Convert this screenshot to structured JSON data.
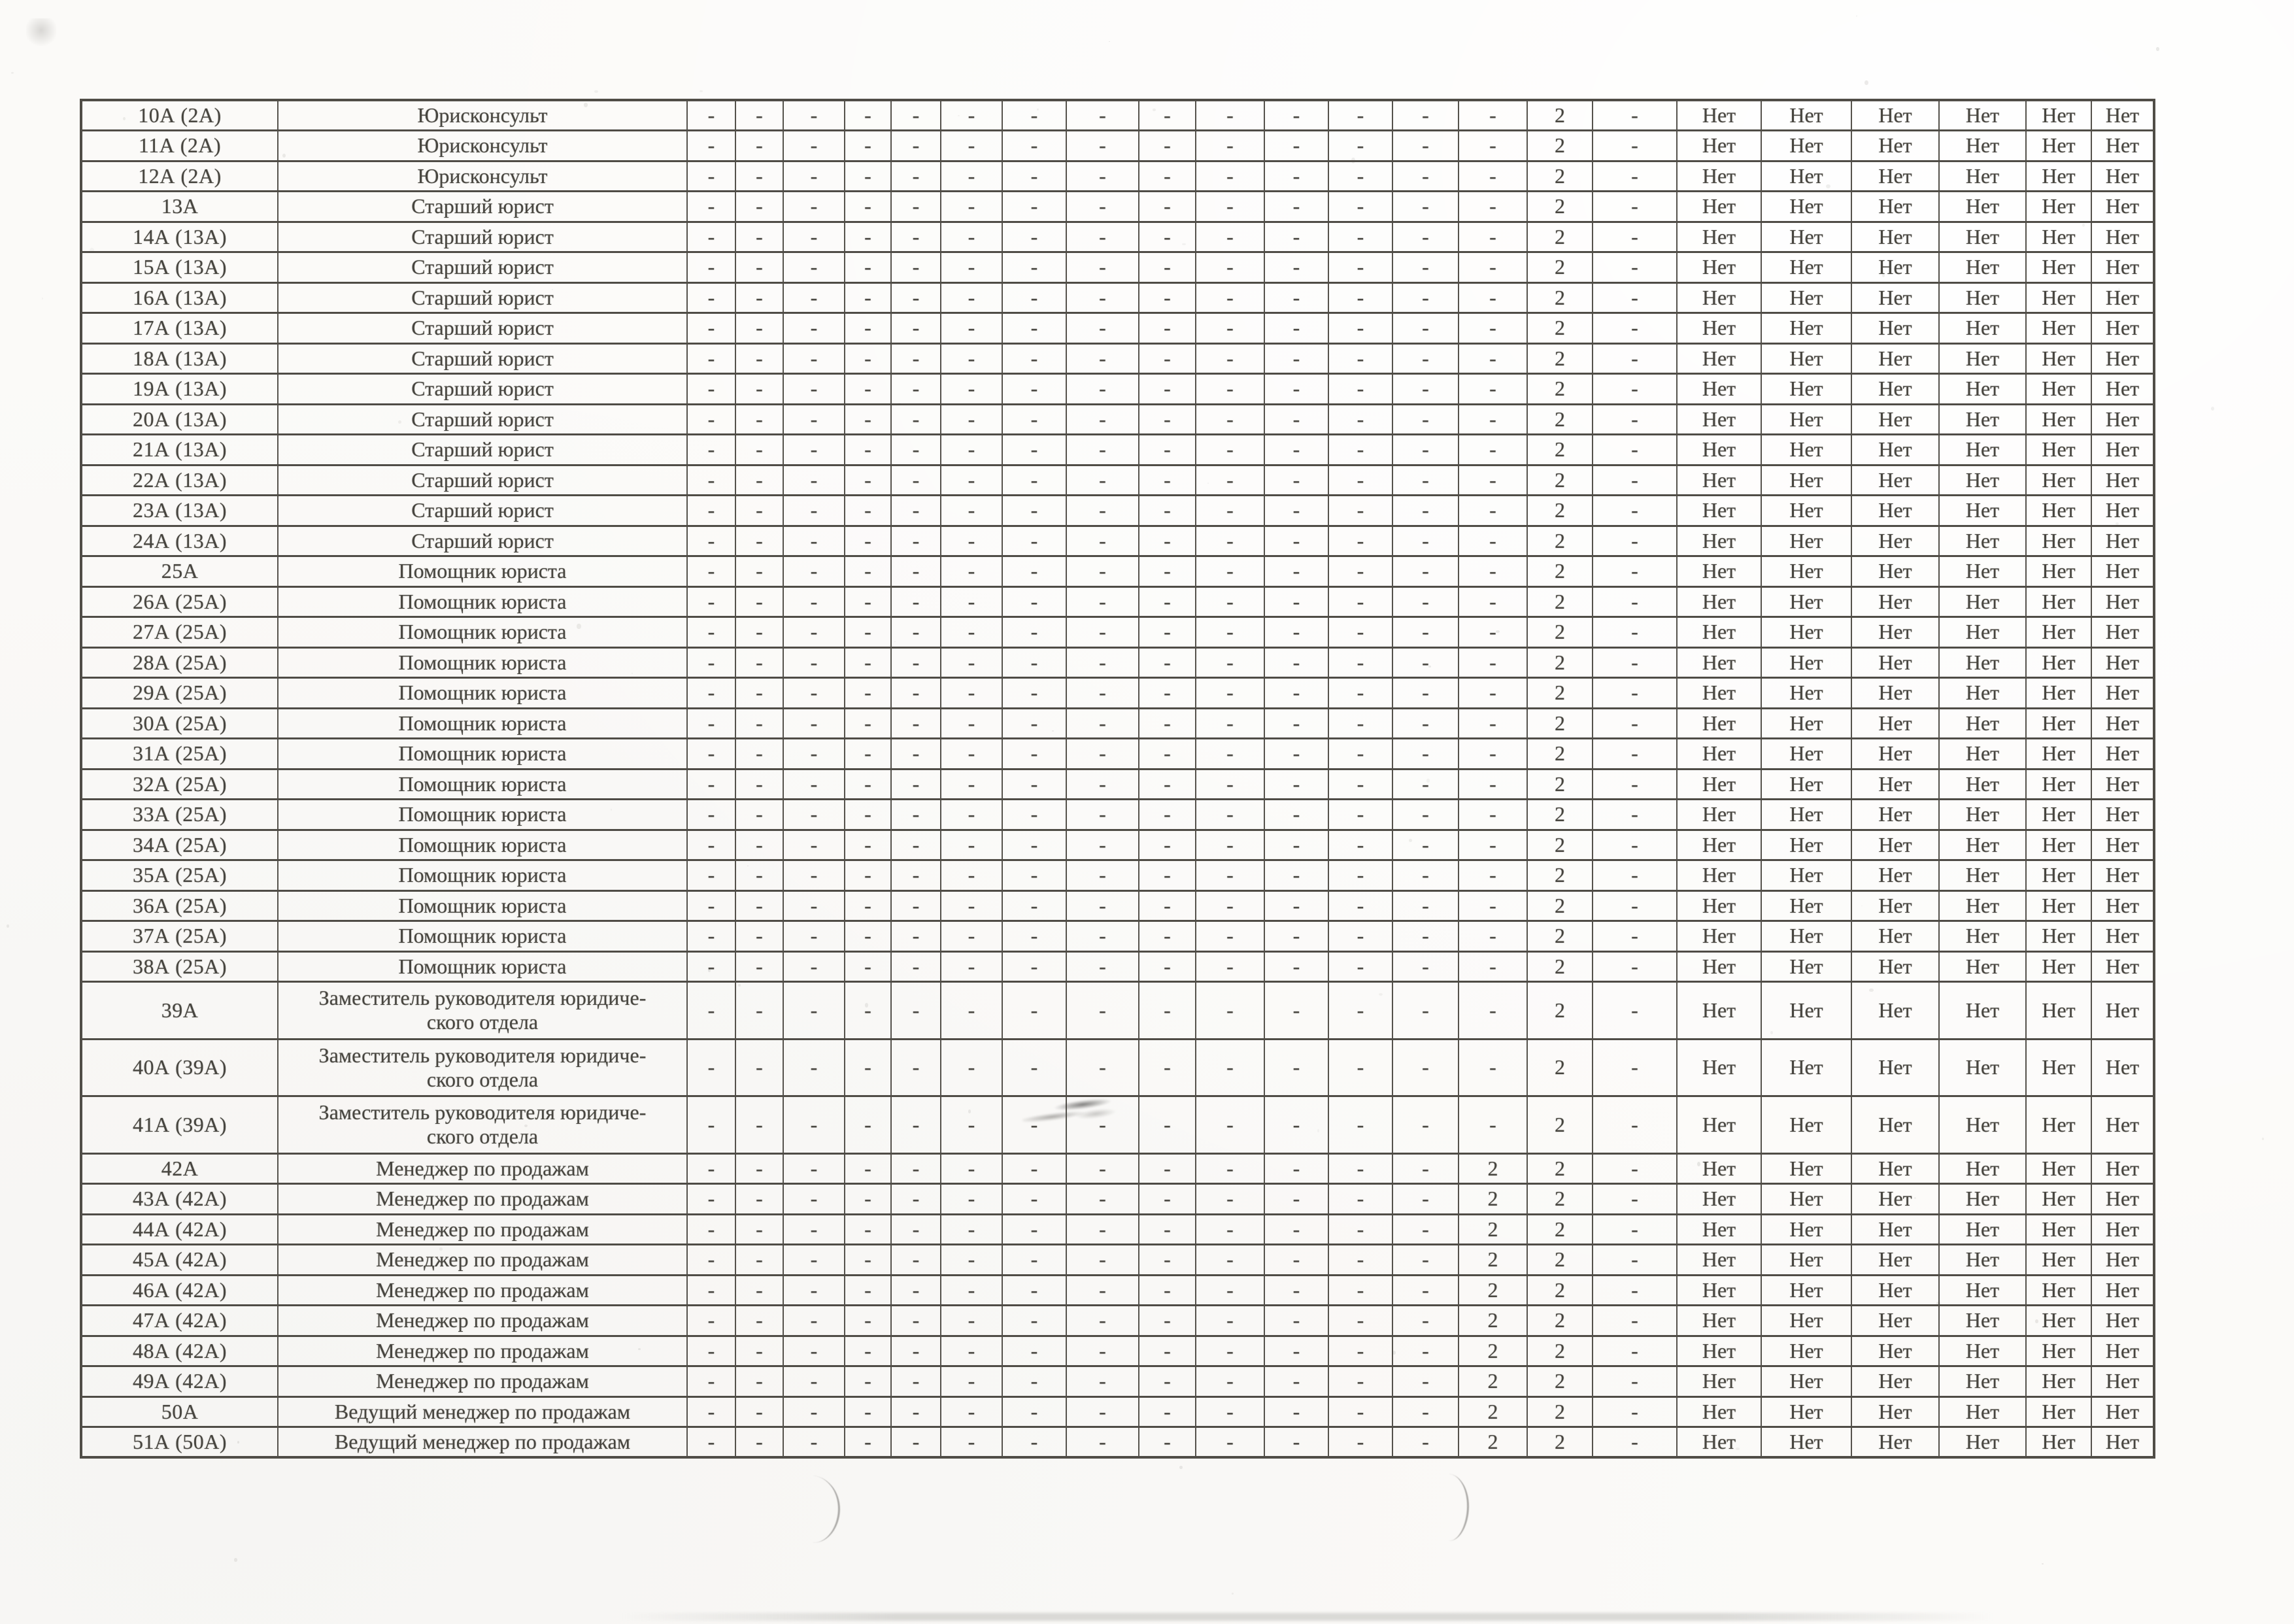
{
  "colors": {
    "paper": "#fbfaf8",
    "ink": "#47453f",
    "grid_line": "#504d47"
  },
  "table": {
    "rows": [
      {
        "code": "10А (2А)",
        "title": "Юрисконсульт",
        "values": [
          "-",
          "-",
          "-",
          "-",
          "-",
          "-",
          "-",
          "-",
          "-",
          "-",
          "-",
          "-",
          "-",
          "-",
          "2",
          "-",
          "Нет",
          "Нет",
          "Нет",
          "Нет",
          "Нет",
          "Нет"
        ]
      },
      {
        "code": "11А (2А)",
        "title": "Юрисконсульт",
        "values": [
          "-",
          "-",
          "-",
          "-",
          "-",
          "-",
          "-",
          "-",
          "-",
          "-",
          "-",
          "-",
          "-",
          "-",
          "2",
          "-",
          "Нет",
          "Нет",
          "Нет",
          "Нет",
          "Нет",
          "Нет"
        ]
      },
      {
        "code": "12А (2А)",
        "title": "Юрисконсульт",
        "values": [
          "-",
          "-",
          "-",
          "-",
          "-",
          "-",
          "-",
          "-",
          "-",
          "-",
          "-",
          "-",
          "-",
          "-",
          "2",
          "-",
          "Нет",
          "Нет",
          "Нет",
          "Нет",
          "Нет",
          "Нет"
        ]
      },
      {
        "code": "13А",
        "title": "Старший юрист",
        "values": [
          "-",
          "-",
          "-",
          "-",
          "-",
          "-",
          "-",
          "-",
          "-",
          "-",
          "-",
          "-",
          "-",
          "-",
          "2",
          "-",
          "Нет",
          "Нет",
          "Нет",
          "Нет",
          "Нет",
          "Нет"
        ]
      },
      {
        "code": "14А (13А)",
        "title": "Старший юрист",
        "values": [
          "-",
          "-",
          "-",
          "-",
          "-",
          "-",
          "-",
          "-",
          "-",
          "-",
          "-",
          "-",
          "-",
          "-",
          "2",
          "-",
          "Нет",
          "Нет",
          "Нет",
          "Нет",
          "Нет",
          "Нет"
        ]
      },
      {
        "code": "15А (13А)",
        "title": "Старший юрист",
        "values": [
          "-",
          "-",
          "-",
          "-",
          "-",
          "-",
          "-",
          "-",
          "-",
          "-",
          "-",
          "-",
          "-",
          "-",
          "2",
          "-",
          "Нет",
          "Нет",
          "Нет",
          "Нет",
          "Нет",
          "Нет"
        ]
      },
      {
        "code": "16А (13А)",
        "title": "Старший юрист",
        "values": [
          "-",
          "-",
          "-",
          "-",
          "-",
          "-",
          "-",
          "-",
          "-",
          "-",
          "-",
          "-",
          "-",
          "-",
          "2",
          "-",
          "Нет",
          "Нет",
          "Нет",
          "Нет",
          "Нет",
          "Нет"
        ]
      },
      {
        "code": "17А (13А)",
        "title": "Старший юрист",
        "values": [
          "-",
          "-",
          "-",
          "-",
          "-",
          "-",
          "-",
          "-",
          "-",
          "-",
          "-",
          "-",
          "-",
          "-",
          "2",
          "-",
          "Нет",
          "Нет",
          "Нет",
          "Нет",
          "Нет",
          "Нет"
        ]
      },
      {
        "code": "18А (13А)",
        "title": "Старший юрист",
        "values": [
          "-",
          "-",
          "-",
          "-",
          "-",
          "-",
          "-",
          "-",
          "-",
          "-",
          "-",
          "-",
          "-",
          "-",
          "2",
          "-",
          "Нет",
          "Нет",
          "Нет",
          "Нет",
          "Нет",
          "Нет"
        ]
      },
      {
        "code": "19А (13А)",
        "title": "Старший юрист",
        "values": [
          "-",
          "-",
          "-",
          "-",
          "-",
          "-",
          "-",
          "-",
          "-",
          "-",
          "-",
          "-",
          "-",
          "-",
          "2",
          "-",
          "Нет",
          "Нет",
          "Нет",
          "Нет",
          "Нет",
          "Нет"
        ]
      },
      {
        "code": "20А (13А)",
        "title": "Старший юрист",
        "values": [
          "-",
          "-",
          "-",
          "-",
          "-",
          "-",
          "-",
          "-",
          "-",
          "-",
          "-",
          "-",
          "-",
          "-",
          "2",
          "-",
          "Нет",
          "Нет",
          "Нет",
          "Нет",
          "Нет",
          "Нет"
        ]
      },
      {
        "code": "21А (13А)",
        "title": "Старший юрист",
        "values": [
          "-",
          "-",
          "-",
          "-",
          "-",
          "-",
          "-",
          "-",
          "-",
          "-",
          "-",
          "-",
          "-",
          "-",
          "2",
          "-",
          "Нет",
          "Нет",
          "Нет",
          "Нет",
          "Нет",
          "Нет"
        ]
      },
      {
        "code": "22А (13А)",
        "title": "Старший юрист",
        "values": [
          "-",
          "-",
          "-",
          "-",
          "-",
          "-",
          "-",
          "-",
          "-",
          "-",
          "-",
          "-",
          "-",
          "-",
          "2",
          "-",
          "Нет",
          "Нет",
          "Нет",
          "Нет",
          "Нет",
          "Нет"
        ]
      },
      {
        "code": "23А (13А)",
        "title": "Старший юрист",
        "values": [
          "-",
          "-",
          "-",
          "-",
          "-",
          "-",
          "-",
          "-",
          "-",
          "-",
          "-",
          "-",
          "-",
          "-",
          "2",
          "-",
          "Нет",
          "Нет",
          "Нет",
          "Нет",
          "Нет",
          "Нет"
        ]
      },
      {
        "code": "24А (13А)",
        "title": "Старший юрист",
        "values": [
          "-",
          "-",
          "-",
          "-",
          "-",
          "-",
          "-",
          "-",
          "-",
          "-",
          "-",
          "-",
          "-",
          "-",
          "2",
          "-",
          "Нет",
          "Нет",
          "Нет",
          "Нет",
          "Нет",
          "Нет"
        ]
      },
      {
        "code": "25А",
        "title": "Помощник юриста",
        "values": [
          "-",
          "-",
          "-",
          "-",
          "-",
          "-",
          "-",
          "-",
          "-",
          "-",
          "-",
          "-",
          "-",
          "-",
          "2",
          "-",
          "Нет",
          "Нет",
          "Нет",
          "Нет",
          "Нет",
          "Нет"
        ]
      },
      {
        "code": "26А (25А)",
        "title": "Помощник юриста",
        "values": [
          "-",
          "-",
          "-",
          "-",
          "-",
          "-",
          "-",
          "-",
          "-",
          "-",
          "-",
          "-",
          "-",
          "-",
          "2",
          "-",
          "Нет",
          "Нет",
          "Нет",
          "Нет",
          "Нет",
          "Нет"
        ]
      },
      {
        "code": "27А (25А)",
        "title": "Помощник юриста",
        "values": [
          "-",
          "-",
          "-",
          "-",
          "-",
          "-",
          "-",
          "-",
          "-",
          "-",
          "-",
          "-",
          "-",
          "-",
          "2",
          "-",
          "Нет",
          "Нет",
          "Нет",
          "Нет",
          "Нет",
          "Нет"
        ]
      },
      {
        "code": "28А (25А)",
        "title": "Помощник юриста",
        "values": [
          "-",
          "-",
          "-",
          "-",
          "-",
          "-",
          "-",
          "-",
          "-",
          "-",
          "-",
          "-",
          "-",
          "-",
          "2",
          "-",
          "Нет",
          "Нет",
          "Нет",
          "Нет",
          "Нет",
          "Нет"
        ]
      },
      {
        "code": "29А (25А)",
        "title": "Помощник юриста",
        "values": [
          "-",
          "-",
          "-",
          "-",
          "-",
          "-",
          "-",
          "-",
          "-",
          "-",
          "-",
          "-",
          "-",
          "-",
          "2",
          "-",
          "Нет",
          "Нет",
          "Нет",
          "Нет",
          "Нет",
          "Нет"
        ]
      },
      {
        "code": "30А (25А)",
        "title": "Помощник юриста",
        "values": [
          "-",
          "-",
          "-",
          "-",
          "-",
          "-",
          "-",
          "-",
          "-",
          "-",
          "-",
          "-",
          "-",
          "-",
          "2",
          "-",
          "Нет",
          "Нет",
          "Нет",
          "Нет",
          "Нет",
          "Нет"
        ]
      },
      {
        "code": "31А (25А)",
        "title": "Помощник юриста",
        "values": [
          "-",
          "-",
          "-",
          "-",
          "-",
          "-",
          "-",
          "-",
          "-",
          "-",
          "-",
          "-",
          "-",
          "-",
          "2",
          "-",
          "Нет",
          "Нет",
          "Нет",
          "Нет",
          "Нет",
          "Нет"
        ]
      },
      {
        "code": "32А (25А)",
        "title": "Помощник юриста",
        "values": [
          "-",
          "-",
          "-",
          "-",
          "-",
          "-",
          "-",
          "-",
          "-",
          "-",
          "-",
          "-",
          "-",
          "-",
          "2",
          "-",
          "Нет",
          "Нет",
          "Нет",
          "Нет",
          "Нет",
          "Нет"
        ]
      },
      {
        "code": "33А (25А)",
        "title": "Помощник юриста",
        "values": [
          "-",
          "-",
          "-",
          "-",
          "-",
          "-",
          "-",
          "-",
          "-",
          "-",
          "-",
          "-",
          "-",
          "-",
          "2",
          "-",
          "Нет",
          "Нет",
          "Нет",
          "Нет",
          "Нет",
          "Нет"
        ]
      },
      {
        "code": "34А (25А)",
        "title": "Помощник юриста",
        "values": [
          "-",
          "-",
          "-",
          "-",
          "-",
          "-",
          "-",
          "-",
          "-",
          "-",
          "-",
          "-",
          "-",
          "-",
          "2",
          "-",
          "Нет",
          "Нет",
          "Нет",
          "Нет",
          "Нет",
          "Нет"
        ]
      },
      {
        "code": "35А (25А)",
        "title": "Помощник юриста",
        "values": [
          "-",
          "-",
          "-",
          "-",
          "-",
          "-",
          "-",
          "-",
          "-",
          "-",
          "-",
          "-",
          "-",
          "-",
          "2",
          "-",
          "Нет",
          "Нет",
          "Нет",
          "Нет",
          "Нет",
          "Нет"
        ]
      },
      {
        "code": "36А (25А)",
        "title": "Помощник юриста",
        "values": [
          "-",
          "-",
          "-",
          "-",
          "-",
          "-",
          "-",
          "-",
          "-",
          "-",
          "-",
          "-",
          "-",
          "-",
          "2",
          "-",
          "Нет",
          "Нет",
          "Нет",
          "Нет",
          "Нет",
          "Нет"
        ]
      },
      {
        "code": "37А (25А)",
        "title": "Помощник юриста",
        "values": [
          "-",
          "-",
          "-",
          "-",
          "-",
          "-",
          "-",
          "-",
          "-",
          "-",
          "-",
          "-",
          "-",
          "-",
          "2",
          "-",
          "Нет",
          "Нет",
          "Нет",
          "Нет",
          "Нет",
          "Нет"
        ]
      },
      {
        "code": "38А (25А)",
        "title": "Помощник юриста",
        "values": [
          "-",
          "-",
          "-",
          "-",
          "-",
          "-",
          "-",
          "-",
          "-",
          "-",
          "-",
          "-",
          "-",
          "-",
          "2",
          "-",
          "Нет",
          "Нет",
          "Нет",
          "Нет",
          "Нет",
          "Нет"
        ]
      },
      {
        "code": "39А",
        "title": "Заместитель руководителя юридиче-\nского отдела",
        "values": [
          "-",
          "-",
          "-",
          "-",
          "-",
          "-",
          "-",
          "-",
          "-",
          "-",
          "-",
          "-",
          "-",
          "-",
          "2",
          "-",
          "Нет",
          "Нет",
          "Нет",
          "Нет",
          "Нет",
          "Нет"
        ]
      },
      {
        "code": "40А (39А)",
        "title": "Заместитель руководителя юридиче-\nского отдела",
        "values": [
          "-",
          "-",
          "-",
          "-",
          "-",
          "-",
          "-",
          "-",
          "-",
          "-",
          "-",
          "-",
          "-",
          "-",
          "2",
          "-",
          "Нет",
          "Нет",
          "Нет",
          "Нет",
          "Нет",
          "Нет"
        ]
      },
      {
        "code": "41А (39А)",
        "title": "Заместитель руководителя юридиче-\nского отдела",
        "values": [
          "-",
          "-",
          "-",
          "-",
          "-",
          "-",
          "-",
          "-",
          "-",
          "-",
          "-",
          "-",
          "-",
          "-",
          "2",
          "-",
          "Нет",
          "Нет",
          "Нет",
          "Нет",
          "Нет",
          "Нет"
        ]
      },
      {
        "code": "42А",
        "title": "Менеджер по продажам",
        "values": [
          "-",
          "-",
          "-",
          "-",
          "-",
          "-",
          "-",
          "-",
          "-",
          "-",
          "-",
          "-",
          "-",
          "2",
          "2",
          "-",
          "Нет",
          "Нет",
          "Нет",
          "Нет",
          "Нет",
          "Нет"
        ]
      },
      {
        "code": "43А (42А)",
        "title": "Менеджер по продажам",
        "values": [
          "-",
          "-",
          "-",
          "-",
          "-",
          "-",
          "-",
          "-",
          "-",
          "-",
          "-",
          "-",
          "-",
          "2",
          "2",
          "-",
          "Нет",
          "Нет",
          "Нет",
          "Нет",
          "Нет",
          "Нет"
        ]
      },
      {
        "code": "44А (42А)",
        "title": "Менеджер по продажам",
        "values": [
          "-",
          "-",
          "-",
          "-",
          "-",
          "-",
          "-",
          "-",
          "-",
          "-",
          "-",
          "-",
          "-",
          "2",
          "2",
          "-",
          "Нет",
          "Нет",
          "Нет",
          "Нет",
          "Нет",
          "Нет"
        ]
      },
      {
        "code": "45А (42А)",
        "title": "Менеджер по продажам",
        "values": [
          "-",
          "-",
          "-",
          "-",
          "-",
          "-",
          "-",
          "-",
          "-",
          "-",
          "-",
          "-",
          "-",
          "2",
          "2",
          "-",
          "Нет",
          "Нет",
          "Нет",
          "Нет",
          "Нет",
          "Нет"
        ]
      },
      {
        "code": "46А (42А)",
        "title": "Менеджер по продажам",
        "values": [
          "-",
          "-",
          "-",
          "-",
          "-",
          "-",
          "-",
          "-",
          "-",
          "-",
          "-",
          "-",
          "-",
          "2",
          "2",
          "-",
          "Нет",
          "Нет",
          "Нет",
          "Нет",
          "Нет",
          "Нет"
        ]
      },
      {
        "code": "47А (42А)",
        "title": "Менеджер по продажам",
        "values": [
          "-",
          "-",
          "-",
          "-",
          "-",
          "-",
          "-",
          "-",
          "-",
          "-",
          "-",
          "-",
          "-",
          "2",
          "2",
          "-",
          "Нет",
          "Нет",
          "Нет",
          "Нет",
          "Нет",
          "Нет"
        ]
      },
      {
        "code": "48А (42А)",
        "title": "Менеджер по продажам",
        "values": [
          "-",
          "-",
          "-",
          "-",
          "-",
          "-",
          "-",
          "-",
          "-",
          "-",
          "-",
          "-",
          "-",
          "2",
          "2",
          "-",
          "Нет",
          "Нет",
          "Нет",
          "Нет",
          "Нет",
          "Нет"
        ]
      },
      {
        "code": "49А (42А)",
        "title": "Менеджер по продажам",
        "values": [
          "-",
          "-",
          "-",
          "-",
          "-",
          "-",
          "-",
          "-",
          "-",
          "-",
          "-",
          "-",
          "-",
          "2",
          "2",
          "-",
          "Нет",
          "Нет",
          "Нет",
          "Нет",
          "Нет",
          "Нет"
        ]
      },
      {
        "code": "50А",
        "title": "Ведущий менеджер по продажам",
        "values": [
          "-",
          "-",
          "-",
          "-",
          "-",
          "-",
          "-",
          "-",
          "-",
          "-",
          "-",
          "-",
          "-",
          "2",
          "2",
          "-",
          "Нет",
          "Нет",
          "Нет",
          "Нет",
          "Нет",
          "Нет"
        ]
      },
      {
        "code": "51А (50А)",
        "title": "Ведущий менеджер по продажам",
        "values": [
          "-",
          "-",
          "-",
          "-",
          "-",
          "-",
          "-",
          "-",
          "-",
          "-",
          "-",
          "-",
          "-",
          "2",
          "2",
          "-",
          "Нет",
          "Нет",
          "Нет",
          "Нет",
          "Нет",
          "Нет"
        ]
      }
    ]
  }
}
